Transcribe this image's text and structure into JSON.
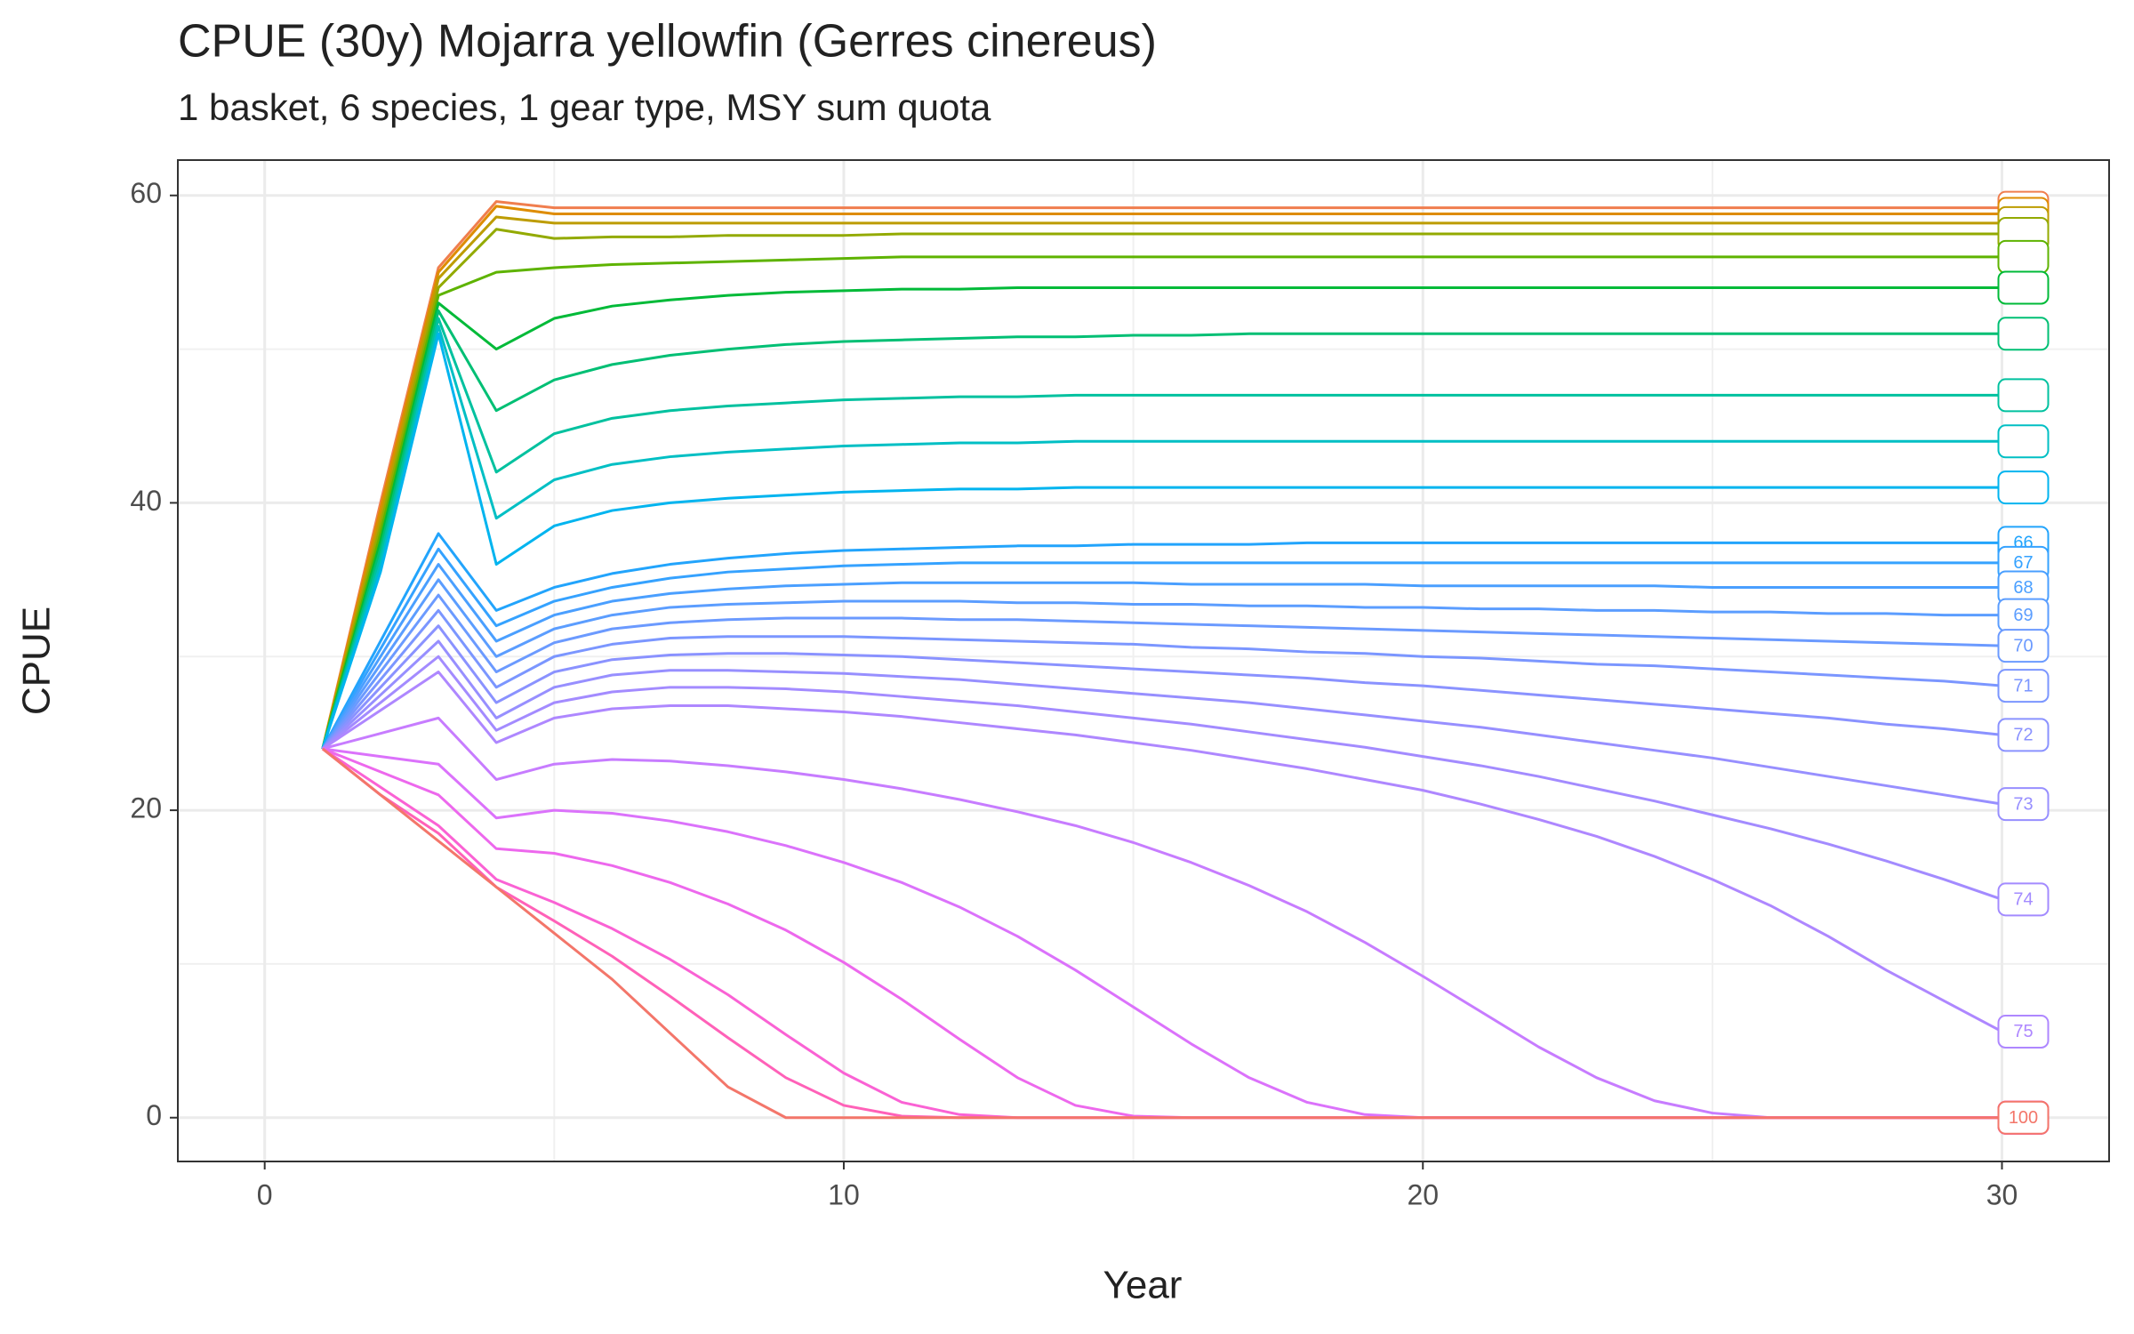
{
  "chart_data": {
    "type": "line",
    "title": "CPUE (30y) Mojarra yellowfin (Gerres cinereus)",
    "subtitle": "1 basket, 6 species, 1 gear type, MSY sum quota",
    "x_label": "Year",
    "y_label": "CPUE",
    "xlim": [
      -1.5,
      31.85
    ],
    "ylim": [
      -2.85,
      62.3
    ],
    "xticks": [
      0,
      10,
      20,
      30
    ],
    "yticks": [
      0,
      20,
      40,
      60
    ],
    "grid": true,
    "minor_grid": true,
    "x": [
      1,
      2,
      3,
      4,
      5,
      6,
      7,
      8,
      9,
      10,
      11,
      12,
      13,
      14,
      15,
      16,
      17,
      18,
      19,
      20,
      21,
      22,
      23,
      24,
      25,
      26,
      27,
      28,
      29,
      30
    ],
    "series": [
      {
        "color": "#F07E4E",
        "values": [
          24,
          40,
          55.3,
          59.6,
          59.2,
          59.2,
          59.2,
          59.2,
          59.2,
          59.2,
          59.2,
          59.2,
          59.2,
          59.2,
          59.2,
          59.2,
          59.2,
          59.2,
          59.2,
          59.2,
          59.2,
          59.2,
          59.2,
          59.2,
          59.2,
          59.2,
          59.2,
          59.2,
          59.2,
          59.2
        ]
      },
      {
        "color": "#DE8C00",
        "values": [
          24,
          39.6,
          55,
          59.3,
          58.8,
          58.8,
          58.8,
          58.8,
          58.8,
          58.8,
          58.8,
          58.8,
          58.8,
          58.8,
          58.8,
          58.8,
          58.8,
          58.8,
          58.8,
          58.8,
          58.8,
          58.8,
          58.8,
          58.8,
          58.8,
          58.8,
          58.8,
          58.8,
          58.8,
          58.8
        ]
      },
      {
        "color": "#BD9C00",
        "values": [
          24,
          39,
          54.6,
          58.6,
          58.2,
          58.2,
          58.2,
          58.2,
          58.2,
          58.2,
          58.2,
          58.2,
          58.2,
          58.2,
          58.2,
          58.2,
          58.2,
          58.2,
          58.2,
          58.2,
          58.2,
          58.2,
          58.2,
          58.2,
          58.2,
          58.2,
          58.2,
          58.2,
          58.2,
          58.2
        ]
      },
      {
        "color": "#93AA00",
        "values": [
          24,
          38.5,
          54,
          57.8,
          57.2,
          57.3,
          57.3,
          57.4,
          57.4,
          57.4,
          57.5,
          57.5,
          57.5,
          57.5,
          57.5,
          57.5,
          57.5,
          57.5,
          57.5,
          57.5,
          57.5,
          57.5,
          57.5,
          57.5,
          57.5,
          57.5,
          57.5,
          57.5,
          57.5,
          57.5
        ]
      },
      {
        "color": "#5EB300",
        "values": [
          24,
          38,
          53.5,
          55,
          55.3,
          55.5,
          55.6,
          55.7,
          55.8,
          55.9,
          56,
          56,
          56,
          56,
          56,
          56,
          56,
          56,
          56,
          56,
          56,
          56,
          56,
          56,
          56,
          56,
          56,
          56,
          56,
          56
        ]
      },
      {
        "color": "#00BA38",
        "values": [
          24,
          37.5,
          53,
          50,
          52,
          52.8,
          53.2,
          53.5,
          53.7,
          53.8,
          53.9,
          53.9,
          54,
          54,
          54,
          54,
          54,
          54,
          54,
          54,
          54,
          54,
          54,
          54,
          54,
          54,
          54,
          54,
          54,
          54
        ]
      },
      {
        "color": "#00BF74",
        "values": [
          24,
          37,
          52.5,
          46,
          48,
          49,
          49.6,
          50,
          50.3,
          50.5,
          50.6,
          50.7,
          50.8,
          50.8,
          50.9,
          50.9,
          51,
          51,
          51,
          51,
          51,
          51,
          51,
          51,
          51,
          51,
          51,
          51,
          51,
          51
        ]
      },
      {
        "color": "#00C19F",
        "values": [
          24,
          36.5,
          52,
          42,
          44.5,
          45.5,
          46,
          46.3,
          46.5,
          46.7,
          46.8,
          46.9,
          46.9,
          47,
          47,
          47,
          47,
          47,
          47,
          47,
          47,
          47,
          47,
          47,
          47,
          47,
          47,
          47,
          47,
          47
        ]
      },
      {
        "color": "#00BFC4",
        "values": [
          24,
          36,
          51.5,
          39,
          41.5,
          42.5,
          43,
          43.3,
          43.5,
          43.7,
          43.8,
          43.9,
          43.9,
          44,
          44,
          44,
          44,
          44,
          44,
          44,
          44,
          44,
          44,
          44,
          44,
          44,
          44,
          44,
          44,
          44
        ]
      },
      {
        "color": "#00B4EF",
        "values": [
          24,
          35.5,
          51,
          36,
          38.5,
          39.5,
          40,
          40.3,
          40.5,
          40.7,
          40.8,
          40.9,
          40.9,
          41,
          41,
          41,
          41,
          41,
          41,
          41,
          41,
          41,
          41,
          41,
          41,
          41,
          41,
          41,
          41,
          41
        ]
      },
      {
        "name": "66",
        "color": "#22A4FC",
        "values": [
          24,
          31,
          38,
          33,
          34.5,
          35.4,
          36,
          36.4,
          36.7,
          36.9,
          37,
          37.1,
          37.2,
          37.2,
          37.3,
          37.3,
          37.3,
          37.4,
          37.4,
          37.4,
          37.4,
          37.4,
          37.4,
          37.4,
          37.4,
          37.4,
          37.4,
          37.4,
          37.4,
          37.4
        ]
      },
      {
        "name": "67",
        "color": "#35A2FF",
        "values": [
          24,
          30.5,
          37,
          32,
          33.6,
          34.5,
          35.1,
          35.5,
          35.7,
          35.9,
          36,
          36.1,
          36.1,
          36.1,
          36.1,
          36.1,
          36.1,
          36.1,
          36.1,
          36.1,
          36.1,
          36.1,
          36.1,
          36.1,
          36.1,
          36.1,
          36.1,
          36.1,
          36.1,
          36.1
        ]
      },
      {
        "name": "68",
        "color": "#4A9FFF",
        "values": [
          24,
          30,
          36,
          31,
          32.7,
          33.6,
          34.1,
          34.4,
          34.6,
          34.7,
          34.8,
          34.8,
          34.8,
          34.8,
          34.8,
          34.7,
          34.7,
          34.7,
          34.7,
          34.6,
          34.6,
          34.6,
          34.6,
          34.6,
          34.5,
          34.5,
          34.5,
          34.5,
          34.5,
          34.5
        ]
      },
      {
        "name": "69",
        "color": "#5B9DFF",
        "values": [
          24,
          29.5,
          35,
          30,
          31.8,
          32.7,
          33.2,
          33.4,
          33.5,
          33.6,
          33.6,
          33.6,
          33.5,
          33.5,
          33.4,
          33.4,
          33.3,
          33.3,
          33.2,
          33.2,
          33.1,
          33.1,
          33,
          33,
          32.9,
          32.9,
          32.8,
          32.8,
          32.7,
          32.7
        ]
      },
      {
        "name": "70",
        "color": "#6B9AFF",
        "values": [
          24,
          29,
          34,
          29,
          30.9,
          31.8,
          32.2,
          32.4,
          32.5,
          32.5,
          32.5,
          32.4,
          32.4,
          32.3,
          32.2,
          32.1,
          32,
          31.9,
          31.8,
          31.7,
          31.6,
          31.5,
          31.4,
          31.3,
          31.2,
          31.1,
          31,
          30.9,
          30.8,
          30.7
        ]
      },
      {
        "name": "71",
        "color": "#7B96FF",
        "values": [
          24,
          28.5,
          33,
          28,
          30,
          30.8,
          31.2,
          31.3,
          31.3,
          31.3,
          31.2,
          31.1,
          31,
          30.9,
          30.8,
          30.6,
          30.5,
          30.3,
          30.2,
          30,
          29.9,
          29.7,
          29.5,
          29.4,
          29.2,
          29,
          28.8,
          28.6,
          28.4,
          28.1
        ]
      },
      {
        "name": "72",
        "color": "#8A92FF",
        "values": [
          24,
          28,
          32,
          27,
          29,
          29.8,
          30.1,
          30.2,
          30.2,
          30.1,
          30,
          29.8,
          29.6,
          29.4,
          29.2,
          29,
          28.8,
          28.6,
          28.3,
          28.1,
          27.8,
          27.5,
          27.2,
          26.9,
          26.6,
          26.3,
          26,
          25.6,
          25.3,
          24.9
        ]
      },
      {
        "name": "73",
        "color": "#978FFF",
        "values": [
          24,
          27.5,
          31,
          26,
          28,
          28.8,
          29.1,
          29.1,
          29,
          28.9,
          28.7,
          28.5,
          28.2,
          27.9,
          27.6,
          27.3,
          27,
          26.6,
          26.2,
          25.8,
          25.4,
          24.9,
          24.4,
          23.9,
          23.4,
          22.8,
          22.2,
          21.6,
          21,
          20.4
        ]
      },
      {
        "name": "74",
        "color": "#A38BFF",
        "values": [
          24,
          27,
          30,
          25.2,
          27,
          27.7,
          28,
          28,
          27.9,
          27.7,
          27.4,
          27.1,
          26.8,
          26.4,
          26,
          25.6,
          25.1,
          24.6,
          24.1,
          23.5,
          22.9,
          22.2,
          21.4,
          20.6,
          19.7,
          18.8,
          17.8,
          16.7,
          15.5,
          14.2
        ]
      },
      {
        "name": "75",
        "color": "#AE87FF",
        "values": [
          24,
          26.5,
          29,
          24.4,
          26,
          26.6,
          26.8,
          26.8,
          26.6,
          26.4,
          26.1,
          25.7,
          25.3,
          24.9,
          24.4,
          23.9,
          23.3,
          22.7,
          22,
          21.3,
          20.4,
          19.4,
          18.3,
          17,
          15.5,
          13.8,
          11.8,
          9.6,
          7.6,
          5.6
        ]
      },
      {
        "color": "#C77CFF",
        "values": [
          24,
          25,
          26,
          22,
          23,
          23.3,
          23.2,
          22.9,
          22.5,
          22,
          21.4,
          20.7,
          19.9,
          19,
          17.9,
          16.6,
          15.1,
          13.4,
          11.4,
          9.2,
          6.9,
          4.6,
          2.6,
          1.1,
          0.3,
          0,
          0,
          0,
          0,
          0
        ]
      },
      {
        "color": "#DB72FB",
        "values": [
          24,
          23.5,
          23,
          19.5,
          20,
          19.8,
          19.3,
          18.6,
          17.7,
          16.6,
          15.3,
          13.7,
          11.8,
          9.6,
          7.2,
          4.8,
          2.6,
          1,
          0.2,
          0,
          0,
          0,
          0,
          0,
          0,
          0,
          0,
          0,
          0,
          0
        ]
      },
      {
        "color": "#ED68ED",
        "values": [
          24,
          22.5,
          21,
          17.5,
          17.2,
          16.4,
          15.3,
          13.9,
          12.2,
          10.1,
          7.7,
          5.1,
          2.6,
          0.8,
          0.1,
          0,
          0,
          0,
          0,
          0,
          0,
          0,
          0,
          0,
          0,
          0,
          0,
          0,
          0,
          0
        ]
      },
      {
        "color": "#FA62D4",
        "values": [
          24,
          21.5,
          19,
          15.5,
          14,
          12.3,
          10.3,
          8,
          5.4,
          2.9,
          1,
          0.2,
          0,
          0,
          0,
          0,
          0,
          0,
          0,
          0,
          0,
          0,
          0,
          0,
          0,
          0,
          0,
          0,
          0,
          0
        ]
      },
      {
        "color": "#FF61B8",
        "values": [
          24,
          21,
          18.5,
          15,
          12.8,
          10.5,
          7.9,
          5.2,
          2.6,
          0.8,
          0.1,
          0,
          0,
          0,
          0,
          0,
          0,
          0,
          0,
          0,
          0,
          0,
          0,
          0,
          0,
          0,
          0,
          0,
          0,
          0
        ]
      },
      {
        "name": "100",
        "color": "#F3766A",
        "values": [
          24,
          21,
          18,
          15,
          12,
          9,
          5.5,
          2,
          0,
          0,
          0,
          0,
          0,
          0,
          0,
          0,
          0,
          0,
          0,
          0,
          0,
          0,
          0,
          0,
          0,
          0,
          0,
          0,
          0,
          0
        ]
      }
    ]
  }
}
